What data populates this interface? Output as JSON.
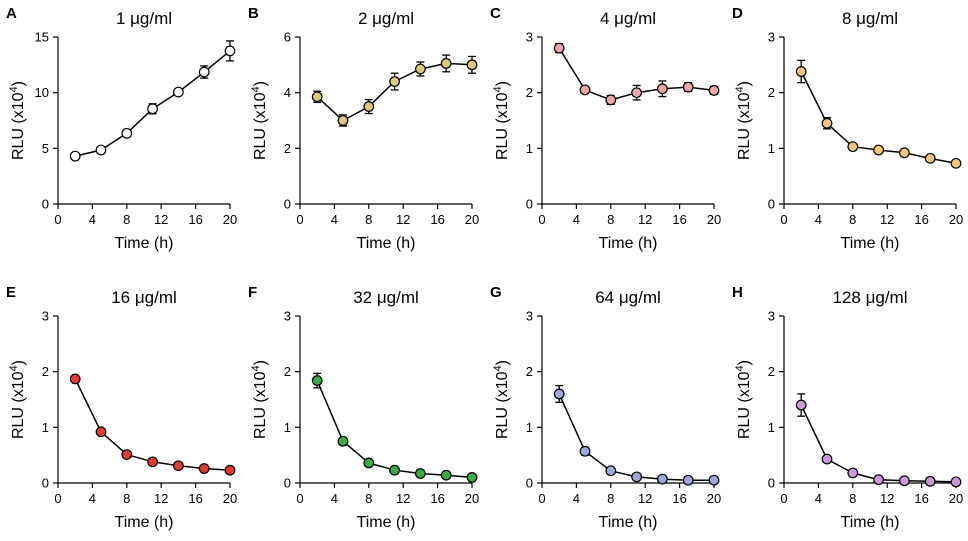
{
  "figure": {
    "x_tick_labels": [
      "0",
      "4",
      "8",
      "12",
      "16",
      "20"
    ],
    "xlabel": "Time (h)",
    "ylabel_prefix": "RLU (x10",
    "ylabel_exponent": "4",
    "ylabel_suffix": ")"
  },
  "chart_data": [
    {
      "letter": "A",
      "title": "1 μg/ml",
      "type": "line",
      "color": "#ffffff",
      "x": [
        2,
        5,
        8,
        11,
        14,
        17,
        20
      ],
      "y": [
        4.3,
        4.85,
        6.35,
        8.55,
        10.05,
        11.85,
        13.75
      ],
      "err": [
        0.15,
        0.15,
        0.25,
        0.45,
        0.25,
        0.55,
        0.9
      ],
      "xlim": [
        0,
        20
      ],
      "ylim": [
        0,
        15
      ],
      "yticks": [
        0,
        5,
        10,
        15
      ]
    },
    {
      "letter": "B",
      "title": "2 μg/ml",
      "type": "line",
      "color": "#d9c878",
      "x": [
        2,
        5,
        8,
        11,
        14,
        17,
        20
      ],
      "y": [
        3.85,
        3.0,
        3.5,
        4.4,
        4.85,
        5.05,
        5.0
      ],
      "err": [
        0.2,
        0.2,
        0.25,
        0.3,
        0.25,
        0.3,
        0.3
      ],
      "xlim": [
        0,
        20
      ],
      "ylim": [
        0,
        6
      ],
      "yticks": [
        0,
        2,
        4,
        6
      ]
    },
    {
      "letter": "C",
      "title": "4 μg/ml",
      "type": "line",
      "color": "#eba7a8",
      "x": [
        2,
        5,
        8,
        11,
        14,
        17,
        20
      ],
      "y": [
        2.8,
        2.05,
        1.87,
        2.0,
        2.07,
        2.1,
        2.04
      ],
      "err": [
        0.08,
        0.05,
        0.08,
        0.13,
        0.14,
        0.08,
        0.07
      ],
      "xlim": [
        0,
        20
      ],
      "ylim": [
        0,
        3
      ],
      "yticks": [
        0,
        1,
        2,
        3
      ]
    },
    {
      "letter": "D",
      "title": "8 μg/ml",
      "type": "line",
      "color": "#f7c77a",
      "x": [
        2,
        5,
        8,
        11,
        14,
        17,
        20
      ],
      "y": [
        2.38,
        1.45,
        1.03,
        0.97,
        0.92,
        0.82,
        0.73
      ],
      "err": [
        0.2,
        0.1,
        0.04,
        0.03,
        0.03,
        0.03,
        0.04
      ],
      "xlim": [
        0,
        20
      ],
      "ylim": [
        0,
        3
      ],
      "yticks": [
        0,
        1,
        2,
        3
      ]
    },
    {
      "letter": "E",
      "title": "16 μg/ml",
      "type": "line",
      "color": "#e33b34",
      "x": [
        2,
        5,
        8,
        11,
        14,
        17,
        20
      ],
      "y": [
        1.87,
        0.92,
        0.51,
        0.38,
        0.31,
        0.26,
        0.23
      ],
      "err": [
        0.03,
        0.03,
        0.02,
        0.02,
        0.02,
        0.02,
        0.02
      ],
      "xlim": [
        0,
        20
      ],
      "ylim": [
        0,
        3
      ],
      "yticks": [
        0,
        1,
        2,
        3
      ]
    },
    {
      "letter": "F",
      "title": "32 μg/ml",
      "type": "line",
      "color": "#3aab47",
      "x": [
        2,
        5,
        8,
        11,
        14,
        17,
        20
      ],
      "y": [
        1.84,
        0.75,
        0.36,
        0.23,
        0.17,
        0.14,
        0.1
      ],
      "err": [
        0.13,
        0.03,
        0.02,
        0.02,
        0.02,
        0.02,
        0.02
      ],
      "xlim": [
        0,
        20
      ],
      "ylim": [
        0,
        3
      ],
      "yticks": [
        0,
        1,
        2,
        3
      ]
    },
    {
      "letter": "G",
      "title": "64 μg/ml",
      "type": "line",
      "color": "#9ea7db",
      "x": [
        2,
        5,
        8,
        11,
        14,
        17,
        20
      ],
      "y": [
        1.6,
        0.57,
        0.22,
        0.11,
        0.07,
        0.05,
        0.05
      ],
      "err": [
        0.15,
        0.07,
        0.03,
        0.02,
        0.02,
        0.02,
        0.02
      ],
      "xlim": [
        0,
        20
      ],
      "ylim": [
        0,
        3
      ],
      "yticks": [
        0,
        1,
        2,
        3
      ]
    },
    {
      "letter": "H",
      "title": "128 μg/ml",
      "type": "line",
      "color": "#c99ad6",
      "x": [
        2,
        5,
        8,
        11,
        14,
        17,
        20
      ],
      "y": [
        1.4,
        0.43,
        0.18,
        0.06,
        0.04,
        0.03,
        0.02
      ],
      "err": [
        0.2,
        0.03,
        0.02,
        0.02,
        0.02,
        0.02,
        0.02
      ],
      "xlim": [
        0,
        20
      ],
      "ylim": [
        0,
        3
      ],
      "yticks": [
        0,
        1,
        2,
        3
      ]
    }
  ]
}
